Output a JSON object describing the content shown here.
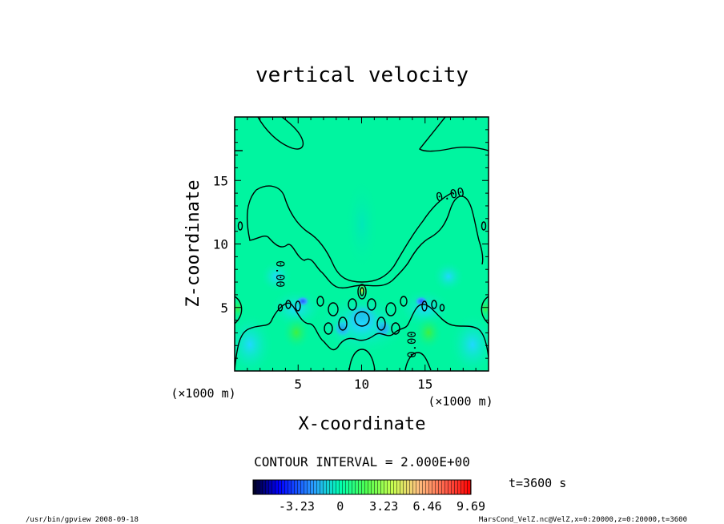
{
  "chart_data": {
    "type": "heatmap",
    "title": "vertical velocity",
    "xlabel": "X-coordinate",
    "ylabel": "Z-coordinate",
    "x_unit": "(×1000 m)",
    "y_unit": "(×1000 m)",
    "xlim": [
      0,
      20
    ],
    "ylim": [
      0,
      20
    ],
    "x_ticks": [
      5,
      10,
      15
    ],
    "y_ticks": [
      5,
      10,
      15
    ],
    "x_tick_labels": [
      "5",
      "10",
      "15"
    ],
    "y_tick_labels": [
      "5",
      "10",
      "15"
    ],
    "contour_interval_label": "CONTOUR INTERVAL = 2.000E+00",
    "contour_labels": [
      "0.00",
      "0.00",
      "0.00"
    ],
    "time_label": "t=3600 s",
    "colorbar_ticks": [
      -3.23,
      0,
      3.23,
      6.46,
      9.69
    ],
    "colorbar_tick_labels": [
      "-3.23",
      "0",
      "3.23",
      "6.46",
      "9.69"
    ],
    "colorbar_colors": [
      "#000020",
      "#0000ff",
      "#2aa0ff",
      "#00ffb0",
      "#50ff50",
      "#c8ff50",
      "#ffc080",
      "#ff5040",
      "#ff0000"
    ],
    "background_color": "#00f5a0",
    "grid": false
  },
  "footer": {
    "left": "/usr/bin/gpview   2008-09-18",
    "right": "MarsCond_VelZ.nc@VelZ,x=0:20000,z=0:20000,t=3600"
  }
}
